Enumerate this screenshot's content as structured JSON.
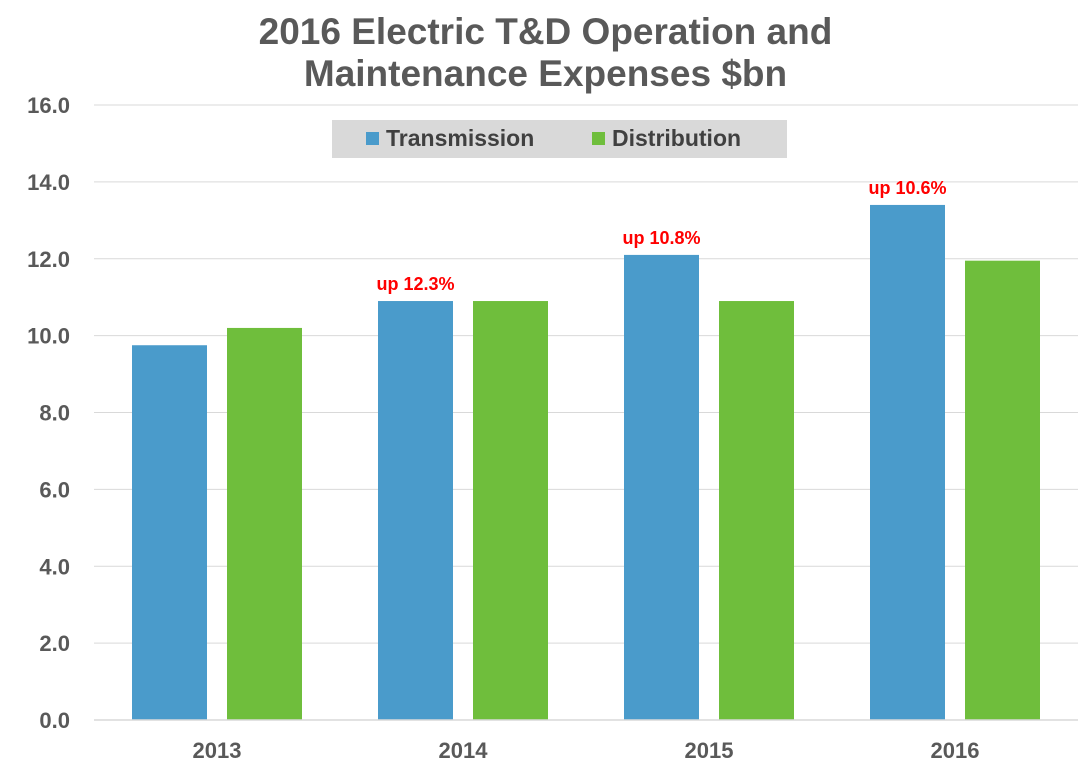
{
  "chart_data": {
    "type": "bar",
    "title_lines": [
      "2016 Electric T&D Operation and",
      "Maintenance Expenses $bn"
    ],
    "categories": [
      "2013",
      "2014",
      "2015",
      "2016"
    ],
    "series": [
      {
        "name": "Transmission",
        "color": "#4a9bcb",
        "values": [
          9.75,
          10.9,
          12.1,
          13.4
        ]
      },
      {
        "name": "Distribution",
        "color": "#6fbe3c",
        "values": [
          10.2,
          10.9,
          10.9,
          11.95
        ]
      }
    ],
    "annotations": [
      {
        "category_index": 1,
        "series_index": 0,
        "text": "up 12.3%",
        "color": "#ff0000"
      },
      {
        "category_index": 2,
        "series_index": 0,
        "text": "up 10.8%",
        "color": "#ff0000"
      },
      {
        "category_index": 3,
        "series_index": 0,
        "text": "up 10.6%",
        "color": "#ff0000"
      }
    ],
    "ylim": [
      0,
      16
    ],
    "yticks": [
      "0.0",
      "2.0",
      "4.0",
      "6.0",
      "8.0",
      "10.0",
      "12.0",
      "14.0",
      "16.0"
    ],
    "grid": true,
    "legend_position": "top-center"
  }
}
